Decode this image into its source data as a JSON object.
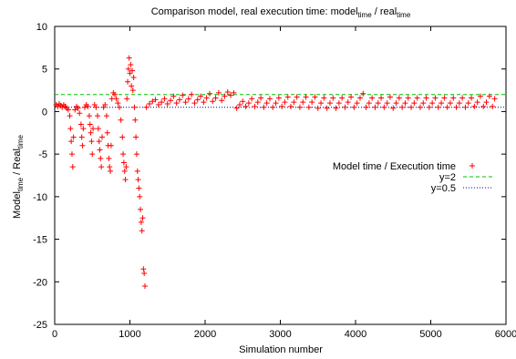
{
  "chart_data": {
    "type": "scatter",
    "title": {
      "main": "Comparison model, real execution time: model",
      "sub1": "time",
      "mid": " / real",
      "sub2": "time"
    },
    "xlabel": "Simulation number",
    "ylabel": {
      "a": "Model",
      "sub_a": "time",
      "mid": " / Real",
      "sub_b": "time"
    },
    "xlim": [
      0,
      6000
    ],
    "ylim": [
      -25,
      10
    ],
    "xticks": [
      "0",
      "1000",
      "2000",
      "3000",
      "4000",
      "5000",
      "6000"
    ],
    "yticks": [
      "10",
      "5",
      "0",
      "-5",
      "-10",
      "-15",
      "-20",
      "-25"
    ],
    "grid": false,
    "legend_position": "right",
    "colors": {
      "points": "#ff0000",
      "y2": "#00c000",
      "y05": "#0000a0"
    },
    "series": [
      {
        "name": "Model time / Execution time",
        "marker": "plus",
        "points": [
          [
            20,
            0.8
          ],
          [
            40,
            0.6
          ],
          [
            60,
            0.9
          ],
          [
            80,
            0.7
          ],
          [
            100,
            0.5
          ],
          [
            120,
            0.8
          ],
          [
            140,
            0.6
          ],
          [
            160,
            0.4
          ],
          [
            180,
            0.2
          ],
          [
            200,
            -0.5
          ],
          [
            210,
            -2.0
          ],
          [
            220,
            -3.5
          ],
          [
            230,
            -5.0
          ],
          [
            240,
            -6.5
          ],
          [
            250,
            -3.0
          ],
          [
            270,
            0.2
          ],
          [
            290,
            0.6
          ],
          [
            310,
            0.4
          ],
          [
            330,
            -0.2
          ],
          [
            350,
            -1.5
          ],
          [
            360,
            -3.0
          ],
          [
            370,
            -4.0
          ],
          [
            380,
            -2.0
          ],
          [
            400,
            0.5
          ],
          [
            420,
            0.8
          ],
          [
            440,
            0.6
          ],
          [
            460,
            -0.5
          ],
          [
            470,
            -1.5
          ],
          [
            480,
            -2.5
          ],
          [
            490,
            -3.5
          ],
          [
            500,
            -5.0
          ],
          [
            510,
            -2.0
          ],
          [
            530,
            0.8
          ],
          [
            550,
            0.5
          ],
          [
            570,
            -0.5
          ],
          [
            580,
            -2.0
          ],
          [
            590,
            -3.5
          ],
          [
            600,
            -4.5
          ],
          [
            610,
            -5.5
          ],
          [
            620,
            -6.5
          ],
          [
            630,
            -3.0
          ],
          [
            650,
            0.5
          ],
          [
            670,
            0.8
          ],
          [
            690,
            -0.5
          ],
          [
            700,
            -2.5
          ],
          [
            710,
            -4.0
          ],
          [
            720,
            -5.5
          ],
          [
            730,
            -6.5
          ],
          [
            740,
            -7.0
          ],
          [
            750,
            -4.0
          ],
          [
            760,
            1.5
          ],
          [
            780,
            2.2
          ],
          [
            800,
            2.0
          ],
          [
            820,
            1.5
          ],
          [
            840,
            1.0
          ],
          [
            860,
            0.5
          ],
          [
            880,
            -1.0
          ],
          [
            900,
            -3.0
          ],
          [
            910,
            -5.0
          ],
          [
            920,
            -6.0
          ],
          [
            930,
            -7.0
          ],
          [
            940,
            -8.0
          ],
          [
            950,
            -6.5
          ],
          [
            960,
            1.5
          ],
          [
            970,
            3.5
          ],
          [
            980,
            5.0
          ],
          [
            990,
            6.3
          ],
          [
            1000,
            4.5
          ],
          [
            1010,
            5.5
          ],
          [
            1020,
            3.0
          ],
          [
            1030,
            4.8
          ],
          [
            1040,
            2.5
          ],
          [
            1050,
            4.0
          ],
          [
            1060,
            0.5
          ],
          [
            1070,
            -1.0
          ],
          [
            1080,
            -3.0
          ],
          [
            1090,
            -5.0
          ],
          [
            1100,
            -7.0
          ],
          [
            1110,
            -8.0
          ],
          [
            1120,
            -9.0
          ],
          [
            1130,
            -10.0
          ],
          [
            1140,
            -11.5
          ],
          [
            1150,
            -13.0
          ],
          [
            1160,
            -14.0
          ],
          [
            1170,
            -12.5
          ],
          [
            1180,
            -18.5
          ],
          [
            1190,
            -19.0
          ],
          [
            1200,
            -20.5
          ],
          [
            1220,
            0.5
          ],
          [
            1260,
            0.9
          ],
          [
            1300,
            1.2
          ],
          [
            1340,
            1.4
          ],
          [
            1380,
            0.8
          ],
          [
            1420,
            1.1
          ],
          [
            1460,
            1.5
          ],
          [
            1500,
            0.9
          ],
          [
            1540,
            1.3
          ],
          [
            1580,
            1.8
          ],
          [
            1620,
            1.0
          ],
          [
            1660,
            1.4
          ],
          [
            1700,
            1.9
          ],
          [
            1740,
            1.1
          ],
          [
            1780,
            1.5
          ],
          [
            1820,
            2.0
          ],
          [
            1860,
            1.0
          ],
          [
            1900,
            1.4
          ],
          [
            1940,
            1.8
          ],
          [
            1980,
            1.1
          ],
          [
            2020,
            1.6
          ],
          [
            2060,
            2.1
          ],
          [
            2100,
            1.2
          ],
          [
            2140,
            1.6
          ],
          [
            2180,
            2.2
          ],
          [
            2220,
            1.3
          ],
          [
            2260,
            1.8
          ],
          [
            2300,
            2.3
          ],
          [
            2340,
            1.9
          ],
          [
            2380,
            2.2
          ],
          [
            2420,
            0.4
          ],
          [
            2460,
            0.8
          ],
          [
            2500,
            1.2
          ],
          [
            2540,
            0.6
          ],
          [
            2580,
            1.0
          ],
          [
            2620,
            1.5
          ],
          [
            2660,
            0.6
          ],
          [
            2700,
            1.1
          ],
          [
            2740,
            1.6
          ],
          [
            2780,
            0.5
          ],
          [
            2820,
            1.0
          ],
          [
            2860,
            1.5
          ],
          [
            2900,
            0.5
          ],
          [
            2940,
            1.0
          ],
          [
            2980,
            1.6
          ],
          [
            3020,
            0.6
          ],
          [
            3060,
            1.1
          ],
          [
            3100,
            1.7
          ],
          [
            3140,
            0.6
          ],
          [
            3180,
            1.1
          ],
          [
            3220,
            1.7
          ],
          [
            3260,
            0.5
          ],
          [
            3300,
            1.1
          ],
          [
            3340,
            1.7
          ],
          [
            3380,
            0.5
          ],
          [
            3420,
            1.1
          ],
          [
            3460,
            1.7
          ],
          [
            3500,
            0.4
          ],
          [
            3540,
            1.0
          ],
          [
            3580,
            1.6
          ],
          [
            3620,
            0.4
          ],
          [
            3660,
            1.0
          ],
          [
            3700,
            1.6
          ],
          [
            3740,
            0.4
          ],
          [
            3780,
            1.0
          ],
          [
            3820,
            1.6
          ],
          [
            3860,
            0.5
          ],
          [
            3900,
            1.1
          ],
          [
            3940,
            1.7
          ],
          [
            3980,
            0.5
          ],
          [
            4020,
            1.0
          ],
          [
            4060,
            1.6
          ],
          [
            4100,
            2.1
          ],
          [
            4140,
            0.5
          ],
          [
            4180,
            1.0
          ],
          [
            4220,
            1.6
          ],
          [
            4260,
            0.5
          ],
          [
            4300,
            1.0
          ],
          [
            4340,
            1.6
          ],
          [
            4380,
            0.5
          ],
          [
            4420,
            1.0
          ],
          [
            4460,
            1.7
          ],
          [
            4500,
            0.4
          ],
          [
            4540,
            1.0
          ],
          [
            4580,
            1.6
          ],
          [
            4620,
            0.5
          ],
          [
            4660,
            1.0
          ],
          [
            4700,
            1.6
          ],
          [
            4740,
            0.5
          ],
          [
            4780,
            1.0
          ],
          [
            4820,
            1.6
          ],
          [
            4860,
            0.5
          ],
          [
            4900,
            1.0
          ],
          [
            4940,
            1.6
          ],
          [
            4980,
            0.5
          ],
          [
            5020,
            1.0
          ],
          [
            5060,
            1.6
          ],
          [
            5100,
            0.5
          ],
          [
            5140,
            1.0
          ],
          [
            5180,
            1.6
          ],
          [
            5220,
            0.5
          ],
          [
            5260,
            1.0
          ],
          [
            5300,
            1.6
          ],
          [
            5340,
            0.5
          ],
          [
            5380,
            1.0
          ],
          [
            5420,
            1.6
          ],
          [
            5460,
            0.5
          ],
          [
            5500,
            1.0
          ],
          [
            5540,
            1.6
          ],
          [
            5580,
            0.6
          ],
          [
            5620,
            1.1
          ],
          [
            5660,
            1.8
          ],
          [
            5700,
            0.6
          ],
          [
            5740,
            1.1
          ],
          [
            5780,
            1.8
          ],
          [
            5820,
            0.6
          ],
          [
            5850,
            1.5
          ]
        ]
      },
      {
        "name": "y=2",
        "type": "line",
        "value": 2
      },
      {
        "name": "y=0.5",
        "type": "line",
        "value": 0.5
      }
    ]
  }
}
